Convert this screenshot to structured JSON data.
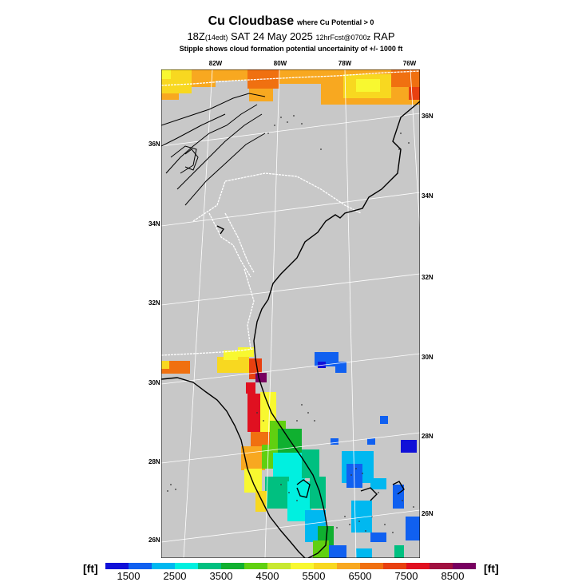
{
  "title": {
    "main": "Cu Cloudbase",
    "qualifier": "where Cu Potential > 0",
    "valid_prefix": "18Z",
    "valid_edt": "(14edt)",
    "valid_date": "SAT 24 May 2025",
    "forecast": "12hrFcst@0700z",
    "model": "RAP",
    "note": "Stipple shows cloud formation potential uncertainity of +/- 1000 ft"
  },
  "axes": {
    "lon_labels": [
      "82W",
      "80W",
      "78W",
      "76W"
    ],
    "lat_labels_left": [
      "36N",
      "34N",
      "32N",
      "30N",
      "28N",
      "26N"
    ],
    "lat_labels_right": [
      "36N",
      "34N",
      "32N",
      "30N",
      "28N",
      "26N"
    ]
  },
  "colorbar": {
    "unit_left": "[ft]",
    "unit_right": "[ft]",
    "labels": [
      "1500",
      "2500",
      "3500",
      "4500",
      "5500",
      "6500",
      "7500",
      "8500"
    ],
    "colors": [
      "#1010d8",
      "#1060f0",
      "#00b8f0",
      "#00f0e0",
      "#00c080",
      "#10b030",
      "#60d010",
      "#c8e830",
      "#f8f830",
      "#f8d820",
      "#f8a820",
      "#f07010",
      "#e84010",
      "#e01020",
      "#a01040",
      "#780060"
    ]
  },
  "map": {
    "background_color": "#c8c8c8",
    "coast_color": "#000000",
    "state_border_color": "#ffffff",
    "grid_color": "#ffffff"
  }
}
